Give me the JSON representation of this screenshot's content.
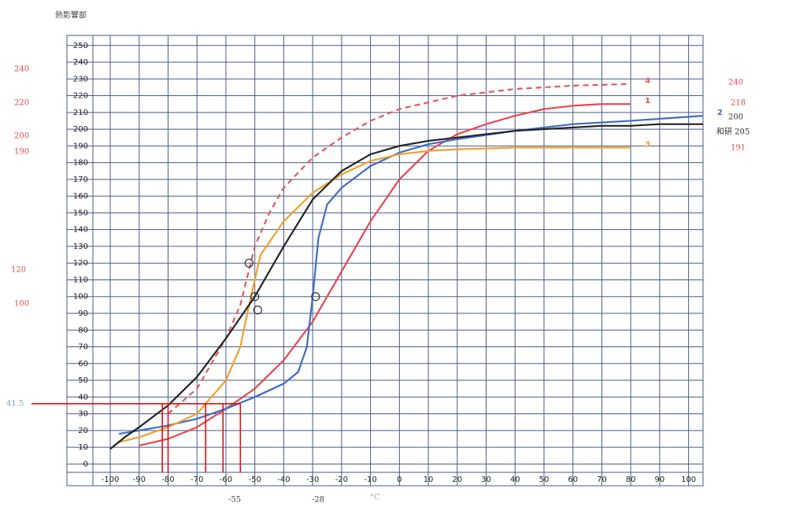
{
  "chart_data": {
    "type": "line",
    "title": "熱影響部",
    "xlim": [
      -106,
      105
    ],
    "ylim": [
      -5,
      256
    ],
    "xticks": [
      -100,
      -90,
      -80,
      -70,
      -60,
      -50,
      -40,
      -30,
      -20,
      -10,
      0,
      10,
      20,
      30,
      40,
      50,
      60,
      70,
      80,
      90,
      100
    ],
    "yticks": [
      0,
      10,
      20,
      30,
      40,
      50,
      60,
      70,
      80,
      90,
      100,
      110,
      120,
      130,
      140,
      150,
      160,
      170,
      180,
      190,
      200,
      210,
      220,
      230,
      240,
      250
    ],
    "grid": true,
    "series": [
      {
        "name": "4",
        "color": "#e05a5a",
        "dashed": true,
        "x": [
          -80,
          -70,
          -60,
          -55,
          -50,
          -45,
          -40,
          -30,
          -20,
          -10,
          0,
          20,
          40,
          60,
          80
        ],
        "values": [
          30,
          45,
          75,
          95,
          130,
          150,
          165,
          183,
          195,
          205,
          212,
          220,
          224,
          226,
          227
        ]
      },
      {
        "name": "1",
        "color": "#e8474f",
        "dashed": false,
        "x": [
          -90,
          -80,
          -70,
          -60,
          -50,
          -40,
          -30,
          -20,
          -10,
          0,
          10,
          20,
          30,
          40,
          50,
          60,
          70,
          80
        ],
        "values": [
          11,
          15,
          22,
          33,
          45,
          62,
          85,
          115,
          145,
          170,
          187,
          197,
          203,
          208,
          212,
          214,
          215,
          215
        ]
      },
      {
        "name": "2",
        "color": "#3f6cc9",
        "dashed": false,
        "x": [
          -97,
          -90,
          -80,
          -70,
          -60,
          -50,
          -40,
          -35,
          -32,
          -30,
          -28,
          -25,
          -20,
          -10,
          0,
          10,
          20,
          40,
          60,
          80,
          105
        ],
        "values": [
          18,
          20,
          23,
          27,
          33,
          40,
          48,
          55,
          70,
          100,
          135,
          155,
          165,
          178,
          186,
          191,
          194,
          199,
          203,
          205,
          208
        ]
      },
      {
        "name": "3",
        "color": "#f0a030",
        "dashed": false,
        "x": [
          -97,
          -90,
          -80,
          -70,
          -60,
          -55,
          -52,
          -48,
          -40,
          -30,
          -20,
          -10,
          0,
          10,
          20,
          40,
          60,
          80
        ],
        "values": [
          13,
          16,
          22,
          30,
          50,
          70,
          95,
          125,
          145,
          162,
          173,
          181,
          185,
          187,
          188,
          189,
          189,
          189
        ]
      },
      {
        "name": "205",
        "color": "#222222",
        "dashed": false,
        "x": [
          -100,
          -95,
          -90,
          -80,
          -70,
          -60,
          -50,
          -40,
          -30,
          -20,
          -10,
          0,
          10,
          20,
          30,
          40,
          50,
          60,
          70,
          80,
          90,
          105
        ],
        "values": [
          9,
          16,
          22,
          35,
          52,
          75,
          100,
          130,
          158,
          175,
          185,
          190,
          193,
          195,
          197,
          199,
          200,
          201,
          202,
          202,
          203,
          203
        ]
      }
    ],
    "circles": {
      "x": [
        -52,
        -50,
        -49,
        -29
      ],
      "values": [
        120,
        100,
        92,
        100
      ]
    },
    "guides": {
      "color": "#e01010",
      "y": 36,
      "x": [
        -82,
        -80,
        -67,
        -61,
        -55
      ]
    },
    "left_labels": [
      "240",
      "220",
      "200",
      "190",
      "120",
      "100",
      "41.5"
    ],
    "right_labels": [
      "240",
      "218",
      "200",
      "和研 205",
      "191"
    ],
    "bottom_labels": [
      "-55",
      "-28",
      "°C"
    ]
  }
}
